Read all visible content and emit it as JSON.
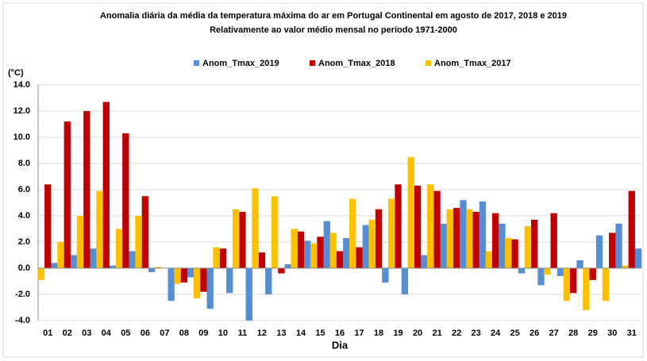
{
  "chart_data": {
    "type": "bar",
    "title": "Anomalia diária da média da temperatura máxima do ar em Portugal Continental em agosto de 2017, 2018 e 2019",
    "subtitle": "Relativamente ao valor médio mensal no período 1971-2000",
    "y_label": "(°C)",
    "x_label": "Dia",
    "categories": [
      "01",
      "02",
      "03",
      "04",
      "05",
      "06",
      "07",
      "08",
      "09",
      "10",
      "11",
      "12",
      "13",
      "14",
      "15",
      "16",
      "17",
      "18",
      "19",
      "20",
      "21",
      "22",
      "23",
      "24",
      "25",
      "26",
      "27",
      "28",
      "29",
      "30",
      "31"
    ],
    "series": [
      {
        "name": "Anom_Tmax_2019",
        "color": "#558ed5",
        "values": [
          0.4,
          1.0,
          1.5,
          0.2,
          1.3,
          -0.3,
          -2.5,
          -0.7,
          -3.1,
          -1.9,
          -4.0,
          -2.0,
          0.3,
          2.1,
          3.6,
          2.3,
          3.3,
          -1.1,
          -2.0,
          1.0,
          3.4,
          5.2,
          5.1,
          3.4,
          -0.4,
          -1.3,
          -0.6,
          0.6,
          2.5,
          3.4,
          1.5
        ]
      },
      {
        "name": "Anom_Tmax_2018",
        "color": "#c00000",
        "values": [
          6.4,
          11.2,
          12.0,
          12.7,
          10.3,
          5.5,
          0.0,
          -1.1,
          -1.8,
          1.5,
          4.3,
          1.2,
          -0.4,
          2.8,
          2.4,
          1.3,
          1.6,
          4.5,
          6.4,
          6.3,
          5.9,
          4.6,
          4.3,
          4.2,
          2.2,
          3.7,
          4.2,
          -1.9,
          -0.9,
          2.7,
          5.9
        ]
      },
      {
        "name": "Anom_Tmax_2017",
        "color": "#ffc000",
        "values": [
          -0.9,
          2.0,
          4.0,
          5.9,
          3.0,
          4.0,
          0.1,
          -1.2,
          -2.3,
          1.6,
          4.5,
          6.1,
          5.5,
          3.0,
          1.9,
          2.7,
          5.3,
          3.7,
          5.3,
          8.5,
          6.4,
          4.5,
          4.5,
          1.3,
          2.3,
          3.2,
          -0.5,
          -2.5,
          -3.2,
          -2.5,
          0.2
        ]
      }
    ],
    "ylim": [
      -4,
      14
    ],
    "yticks": [
      {
        "value": -4,
        "label": "-4.0"
      },
      {
        "value": -2,
        "label": "-2.0"
      },
      {
        "value": 0,
        "label": "0.0"
      },
      {
        "value": 2,
        "label": "2.0"
      },
      {
        "value": 4,
        "label": "4.0"
      },
      {
        "value": 6,
        "label": "6.0"
      },
      {
        "value": 8,
        "label": "8.0"
      },
      {
        "value": 10,
        "label": "10.0"
      },
      {
        "value": 12,
        "label": "12.0"
      },
      {
        "value": 14,
        "label": "14.0"
      }
    ],
    "grid": true
  }
}
